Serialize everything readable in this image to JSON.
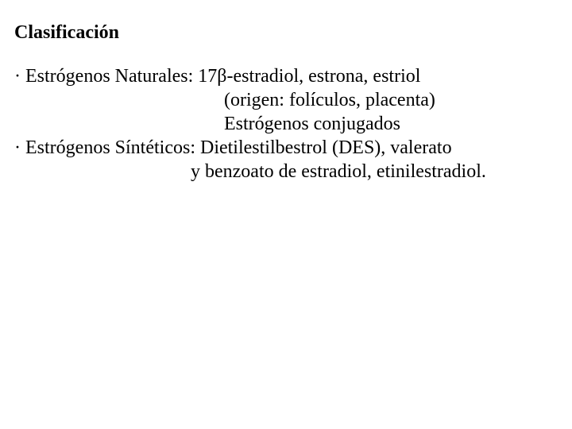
{
  "typography": {
    "font_family": "Times New Roman",
    "heading_fontsize_pt": 18,
    "body_fontsize_pt": 18,
    "text_color": "#000000",
    "background_color": "#ffffff"
  },
  "heading": "Clasificación",
  "items": [
    {
      "bullet": "·",
      "label": "Estrógenos Naturales:",
      "lines": [
        "17β-estradiol, estrona, estriol",
        "(origen: folículos, placenta)",
        "Estrógenos conjugados"
      ]
    },
    {
      "bullet": "·",
      "label": "Estrógenos Síntéticos:",
      "lines": [
        "Dietilestilbestrol (DES), valerato"
      ],
      "trailing_line": "y benzoato de estradiol, etinilestradiol."
    }
  ]
}
